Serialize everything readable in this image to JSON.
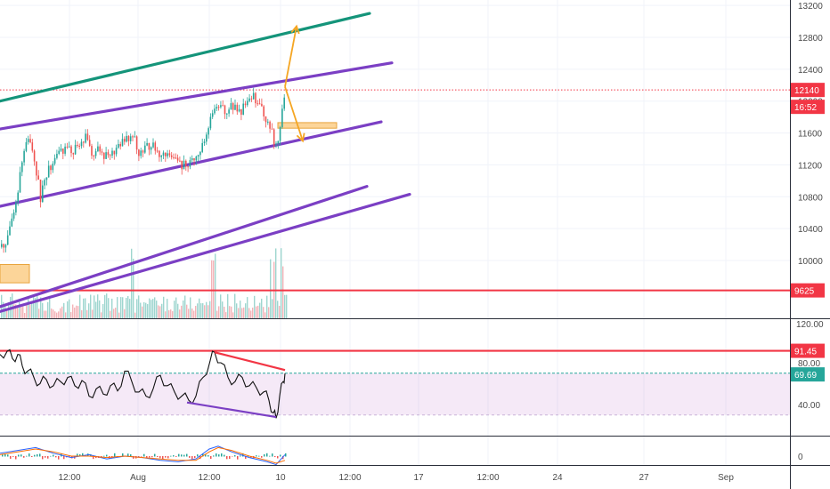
{
  "chart_data": [
    {
      "type": "candlestick",
      "panel": "price",
      "title": "",
      "x_ticks": [
        "12:00",
        "Aug",
        "12:00",
        "10",
        "12:00",
        "17",
        "12:00",
        "24",
        "27",
        "Sep"
      ],
      "y_ticks": [
        "13200",
        "12800",
        "12400",
        "12000",
        "11600",
        "11200",
        "10800",
        "10400",
        "10000"
      ],
      "ylim": [
        9350,
        13300
      ],
      "grid": true,
      "price_labels": {
        "last_price": "12140",
        "countdown": "16:52",
        "support_level": "9625",
        "volume_axis": "120.00"
      },
      "horizontal_levels": [
        {
          "name": "current-price-line",
          "value": 12140,
          "style": "dotted"
        },
        {
          "name": "support-line",
          "value": 9625,
          "style": "solid"
        }
      ],
      "trendlines": [
        {
          "name": "teal-channel-top",
          "color": "#14947a",
          "from": [
            0,
            12000
          ],
          "to": [
            415,
            13100
          ]
        },
        {
          "name": "purple-channel-upper",
          "color": "#7b3fc4",
          "from": [
            0,
            11650
          ],
          "to": [
            440,
            12480
          ]
        },
        {
          "name": "purple-channel-lower",
          "color": "#7b3fc4",
          "from": [
            0,
            10680
          ],
          "to": [
            428,
            11740
          ]
        },
        {
          "name": "purple-outer-upper",
          "color": "#7b3fc4",
          "from": [
            0,
            9420
          ],
          "to": [
            412,
            10930
          ]
        },
        {
          "name": "purple-outer-lower",
          "color": "#7b3fc4",
          "from": [
            0,
            9360
          ],
          "to": [
            460,
            10830
          ]
        }
      ],
      "projections": [
        {
          "name": "up-arrow",
          "color": "#f5a623",
          "from": [
            320,
            12180
          ],
          "to": [
            333,
            12940
          ]
        },
        {
          "name": "down-arrow",
          "color": "#f5a623",
          "from": [
            320,
            12180
          ],
          "to": [
            340,
            11500
          ]
        }
      ],
      "zones": [
        {
          "name": "resistance-zone",
          "x": [
            312,
            378
          ],
          "y": [
            11660,
            11730
          ]
        },
        {
          "name": "demand-zone",
          "x": [
            0,
            33
          ],
          "y": [
            9720,
            9950
          ]
        }
      ],
      "price_path": [
        [
          0,
          10170
        ],
        [
          8,
          10270
        ],
        [
          14,
          10550
        ],
        [
          20,
          10900
        ],
        [
          25,
          11350
        ],
        [
          31,
          11520
        ],
        [
          38,
          11270
        ],
        [
          45,
          10770
        ],
        [
          50,
          11080
        ],
        [
          56,
          11170
        ],
        [
          64,
          11330
        ],
        [
          72,
          11420
        ],
        [
          80,
          11370
        ],
        [
          88,
          11440
        ],
        [
          95,
          11560
        ],
        [
          102,
          11330
        ],
        [
          110,
          11400
        ],
        [
          118,
          11300
        ],
        [
          126,
          11380
        ],
        [
          134,
          11440
        ],
        [
          141,
          11520
        ],
        [
          148,
          11580
        ],
        [
          155,
          11360
        ],
        [
          162,
          11410
        ],
        [
          170,
          11470
        ],
        [
          177,
          11330
        ],
        [
          184,
          11380
        ],
        [
          191,
          11290
        ],
        [
          198,
          11250
        ],
        [
          205,
          11190
        ],
        [
          212,
          11240
        ],
        [
          220,
          11350
        ],
        [
          228,
          11460
        ],
        [
          236,
          11800
        ],
        [
          244,
          11950
        ],
        [
          252,
          11880
        ],
        [
          260,
          11930
        ],
        [
          268,
          11860
        ],
        [
          276,
          11970
        ],
        [
          284,
          12050
        ],
        [
          290,
          11930
        ],
        [
          296,
          11830
        ],
        [
          302,
          11700
        ],
        [
          308,
          11440
        ],
        [
          312,
          11570
        ],
        [
          316,
          11870
        ],
        [
          320,
          12140
        ]
      ]
    },
    {
      "type": "line",
      "panel": "oscillator",
      "y_ticks": [
        "80.00",
        "40.00"
      ],
      "value_labels": {
        "upper_level": "91.45",
        "current": "69.69"
      },
      "levels": [
        {
          "name": "rsi-level-91",
          "value": 91.45,
          "color": "#f23645"
        },
        {
          "name": "rsi-level-70",
          "value": 70,
          "color": "#26a69a"
        }
      ],
      "divergence_lines": [
        {
          "name": "bearish-divergence",
          "color": "#f23645",
          "from": [
            241,
            90
          ],
          "to": [
            320,
            73
          ]
        },
        {
          "name": "bullish-divergence",
          "color": "#7b3fc4",
          "from": [
            210,
            42
          ],
          "to": [
            310,
            28
          ]
        }
      ],
      "series": [
        {
          "values": [
            [
              0,
              88
            ],
            [
              8,
              91
            ],
            [
              14,
              84
            ],
            [
              20,
              88
            ],
            [
              25,
              77
            ],
            [
              31,
              72
            ],
            [
              38,
              66
            ],
            [
              45,
              60
            ],
            [
              52,
              64
            ],
            [
              60,
              58
            ],
            [
              68,
              62
            ],
            [
              76,
              66
            ],
            [
              84,
              58
            ],
            [
              92,
              63
            ],
            [
              100,
              48
            ],
            [
              108,
              55
            ],
            [
              116,
              50
            ],
            [
              124,
              58
            ],
            [
              132,
              53
            ],
            [
              140,
              72
            ],
            [
              148,
              62
            ],
            [
              156,
              52
            ],
            [
              164,
              48
            ],
            [
              172,
              55
            ],
            [
              180,
              68
            ],
            [
              188,
              58
            ],
            [
              196,
              52
            ],
            [
              204,
              48
            ],
            [
              212,
              44
            ],
            [
              220,
              48
            ],
            [
              228,
              66
            ],
            [
              236,
              82
            ],
            [
              241,
              90
            ],
            [
              248,
              80
            ],
            [
              256,
              66
            ],
            [
              264,
              62
            ],
            [
              272,
              66
            ],
            [
              280,
              58
            ],
            [
              288,
              56
            ],
            [
              296,
              52
            ],
            [
              302,
              44
            ],
            [
              307,
              32
            ],
            [
              310,
              27
            ],
            [
              314,
              48
            ],
            [
              318,
              62
            ],
            [
              320,
              69.69
            ]
          ]
        }
      ]
    },
    {
      "type": "line",
      "panel": "macd",
      "y_ticks": [
        "0"
      ],
      "series": [
        {
          "values": [
            [
              0,
              2
            ],
            [
              20,
              4
            ],
            [
              40,
              6
            ],
            [
              60,
              2
            ],
            [
              80,
              -1
            ],
            [
              100,
              1
            ],
            [
              120,
              -2
            ],
            [
              140,
              0
            ],
            [
              160,
              -1
            ],
            [
              180,
              -3
            ],
            [
              200,
              -4
            ],
            [
              220,
              -2
            ],
            [
              235,
              5
            ],
            [
              245,
              7
            ],
            [
              260,
              3
            ],
            [
              280,
              -1
            ],
            [
              300,
              -4
            ],
            [
              310,
              -6
            ],
            [
              320,
              1
            ]
          ]
        },
        {
          "values": [
            [
              0,
              1
            ],
            [
              20,
              3
            ],
            [
              40,
              5
            ],
            [
              60,
              3
            ],
            [
              80,
              0
            ],
            [
              100,
              0
            ],
            [
              120,
              -1
            ],
            [
              140,
              0
            ],
            [
              160,
              -1
            ],
            [
              180,
              -2
            ],
            [
              200,
              -3
            ],
            [
              220,
              -3
            ],
            [
              235,
              3
            ],
            [
              245,
              6
            ],
            [
              260,
              4
            ],
            [
              280,
              0
            ],
            [
              300,
              -3
            ],
            [
              310,
              -5
            ],
            [
              320,
              -3
            ]
          ]
        }
      ]
    }
  ]
}
